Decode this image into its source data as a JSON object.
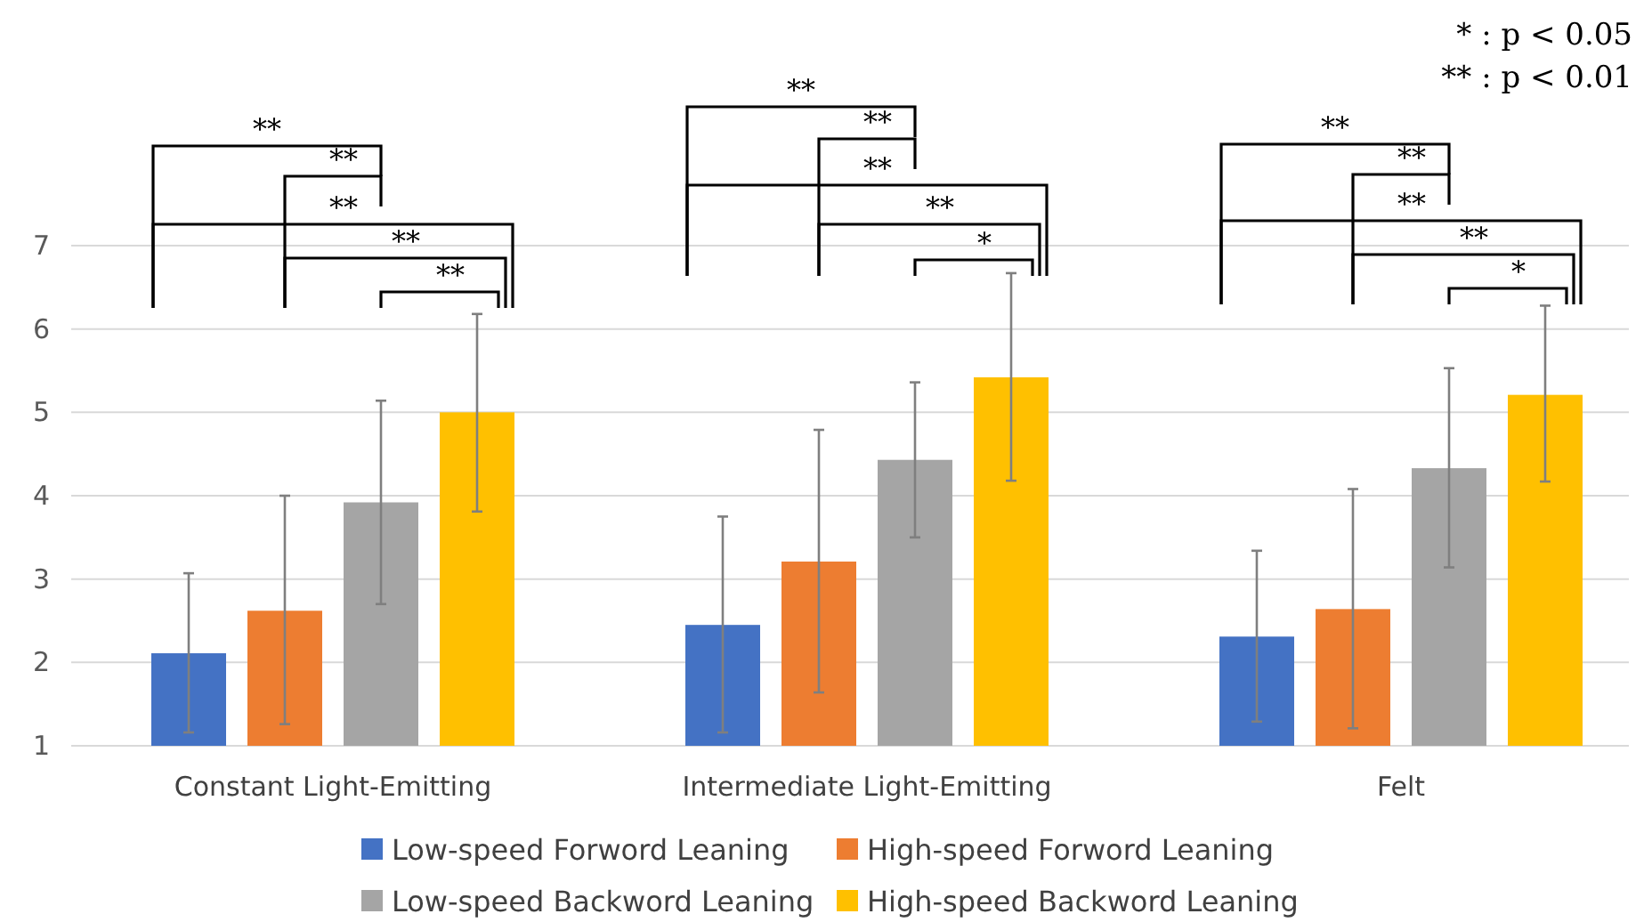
{
  "chart_data": {
    "type": "bar",
    "categories": [
      "Constant Light-Emitting",
      "Intermediate Light-Emitting",
      "Felt"
    ],
    "series": [
      {
        "name": "Low-speed Forword Leaning",
        "color": "#4472c4",
        "values": [
          2.11,
          2.45,
          2.31
        ],
        "errors": [
          [
            1.16,
            3.07
          ],
          [
            1.16,
            3.75
          ],
          [
            1.29,
            3.34
          ]
        ]
      },
      {
        "name": "High-speed Forword Leaning",
        "color": "#ed7d31",
        "values": [
          2.62,
          3.21,
          2.64
        ],
        "errors": [
          [
            1.26,
            4.0
          ],
          [
            1.64,
            4.79
          ],
          [
            1.21,
            4.08
          ]
        ]
      },
      {
        "name": "Low-speed Backword Leaning",
        "color": "#a5a5a5",
        "values": [
          3.92,
          4.43,
          4.33
        ],
        "errors": [
          [
            2.7,
            5.14
          ],
          [
            3.5,
            5.36
          ],
          [
            3.14,
            5.53
          ]
        ]
      },
      {
        "name": "High-speed Backword Leaning",
        "color": "#ffc000",
        "values": [
          5.0,
          5.42,
          5.21
        ],
        "errors": [
          [
            3.81,
            6.18
          ],
          [
            4.18,
            6.67
          ],
          [
            4.17,
            6.28
          ]
        ]
      }
    ],
    "ylim": [
      1,
      7
    ],
    "yticks": [
      1,
      2,
      3,
      4,
      5,
      6,
      7
    ],
    "grid": "y",
    "legend": "bottom",
    "annotations": [
      "**",
      "**",
      "**",
      "**",
      "**",
      "**",
      "**",
      "**",
      "**",
      "*",
      "**",
      "**",
      "**",
      "**",
      "*",
      "* : p < 0.05",
      "** : p < 0.01"
    ]
  }
}
